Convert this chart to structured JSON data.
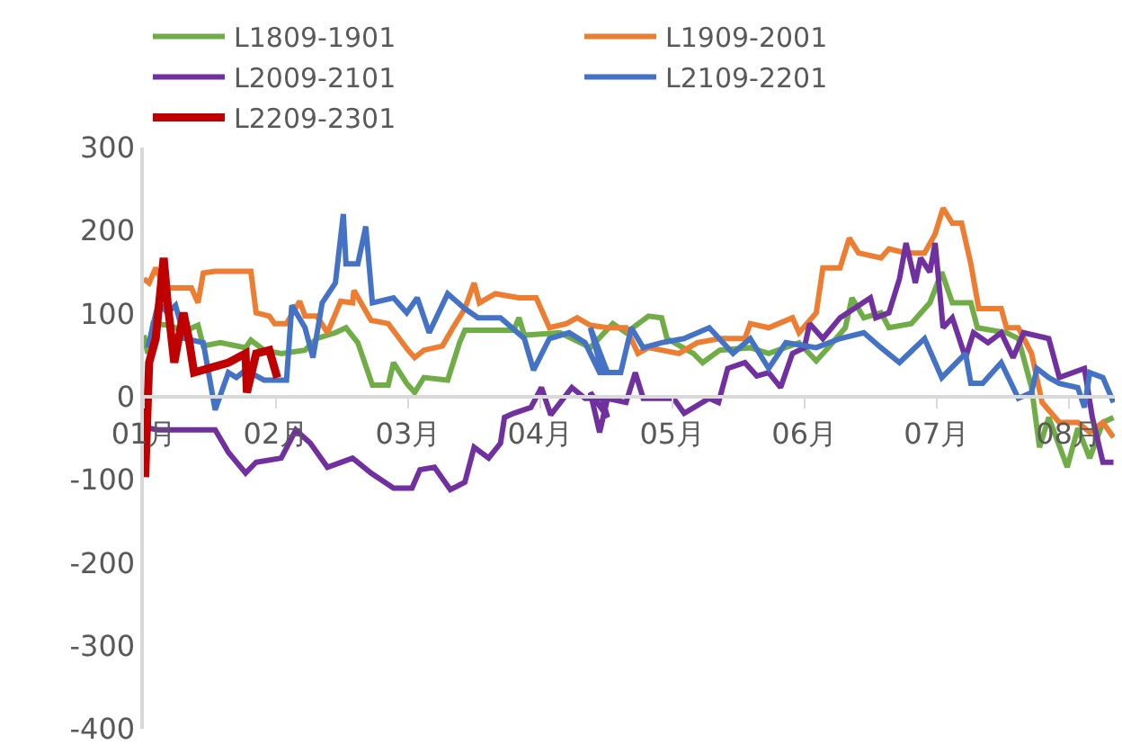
{
  "chart_data": {
    "type": "line",
    "legend": "top",
    "grid": false,
    "marker": "none",
    "line_style": "solid",
    "xlim": [
      1,
      8.35
    ],
    "xticks": [
      {
        "value": 1,
        "label": "01月"
      },
      {
        "value": 2,
        "label": "02月"
      },
      {
        "value": 3,
        "label": "03月"
      },
      {
        "value": 4,
        "label": "04月"
      },
      {
        "value": 5,
        "label": "05月"
      },
      {
        "value": 6,
        "label": "06月"
      },
      {
        "value": 7,
        "label": "07月"
      },
      {
        "value": 8,
        "label": "08月"
      }
    ],
    "ylim": [
      -400,
      300
    ],
    "yticks": [
      -400,
      -300,
      -200,
      -100,
      0,
      100,
      200,
      300
    ],
    "series": [
      {
        "name": "L1809-1901",
        "color": "#70ad47",
        "x": [
          1.0,
          1.03,
          1.07,
          1.18,
          1.31,
          1.41,
          1.45,
          1.58,
          1.77,
          1.81,
          1.91,
          2.04,
          2.22,
          2.31,
          2.45,
          2.53,
          2.62,
          2.73,
          2.85,
          2.89,
          2.99,
          3.05,
          3.12,
          3.3,
          3.39,
          3.43,
          3.8,
          3.84,
          3.88,
          4.15,
          4.38,
          4.55,
          4.65,
          4.82,
          4.92,
          4.96,
          5.16,
          5.23,
          5.36,
          5.59,
          5.73,
          5.96,
          6.09,
          6.18,
          6.31,
          6.36,
          6.45,
          6.58,
          6.64,
          6.81,
          6.95,
          7.04,
          7.12,
          7.26,
          7.31,
          7.53,
          7.62,
          7.72,
          7.78,
          7.85,
          7.99,
          8.07,
          8.16,
          8.26,
          8.34
        ],
        "values": [
          74,
          52,
          88,
          86,
          79,
          86,
          61,
          65,
          59,
          68,
          56,
          52,
          56,
          70,
          77,
          83,
          65,
          14,
          14,
          41,
          16,
          5,
          23,
          20,
          65,
          80,
          80,
          95,
          74,
          77,
          59,
          88,
          77,
          97,
          95,
          70,
          52,
          41,
          56,
          59,
          52,
          65,
          43,
          59,
          83,
          119,
          95,
          101,
          83,
          88,
          113,
          150,
          113,
          113,
          83,
          77,
          70,
          11,
          -61,
          -25,
          -85,
          -38,
          -74,
          -31,
          -25
        ]
      },
      {
        "name": "L1909-2001",
        "color": "#ed7d31",
        "x": [
          1.0,
          1.04,
          1.09,
          1.16,
          1.36,
          1.41,
          1.45,
          1.54,
          1.81,
          1.85,
          1.95,
          1.99,
          2.08,
          2.18,
          2.22,
          2.31,
          2.39,
          2.49,
          2.58,
          2.59,
          2.72,
          2.85,
          3.0,
          3.05,
          3.12,
          3.26,
          3.34,
          3.43,
          3.5,
          3.54,
          3.66,
          3.84,
          3.97,
          4.07,
          4.2,
          4.28,
          4.38,
          4.51,
          4.65,
          4.74,
          4.82,
          5.05,
          5.19,
          5.36,
          5.55,
          5.59,
          5.73,
          5.91,
          5.96,
          6.09,
          6.14,
          6.27,
          6.34,
          6.41,
          6.58,
          6.64,
          6.77,
          6.91,
          6.99,
          7.05,
          7.12,
          7.19,
          7.26,
          7.32,
          7.49,
          7.53,
          7.62,
          7.72,
          7.8,
          7.93,
          8.07,
          8.16,
          8.26,
          8.34
        ],
        "values": [
          142,
          137,
          155,
          131,
          131,
          113,
          149,
          151,
          151,
          101,
          97,
          88,
          88,
          115,
          97,
          97,
          77,
          115,
          113,
          128,
          92,
          88,
          56,
          47,
          56,
          61,
          83,
          106,
          137,
          113,
          124,
          119,
          119,
          83,
          88,
          95,
          86,
          83,
          83,
          52,
          59,
          52,
          65,
          70,
          70,
          88,
          83,
          95,
          77,
          101,
          155,
          155,
          191,
          173,
          167,
          178,
          173,
          173,
          196,
          227,
          209,
          209,
          160,
          106,
          106,
          83,
          83,
          52,
          -7,
          -31,
          -31,
          -43,
          -31,
          -49
        ]
      },
      {
        "name": "L2009-2101",
        "color": "#7030a0",
        "x": [
          1.0,
          1.04,
          1.11,
          1.54,
          1.64,
          1.77,
          1.85,
          2.04,
          2.15,
          2.26,
          2.39,
          2.58,
          2.72,
          2.89,
          3.03,
          3.09,
          3.2,
          3.32,
          3.43,
          3.5,
          3.61,
          3.7,
          3.73,
          3.8,
          3.93,
          4.01,
          4.08,
          4.24,
          4.34,
          4.47,
          4.51,
          4.38,
          4.45,
          4.51,
          4.65,
          4.72,
          4.78,
          5.01,
          5.09,
          5.28,
          5.35,
          5.42,
          5.55,
          5.64,
          5.73,
          5.82,
          5.91,
          6.0,
          6.04,
          6.14,
          6.27,
          6.5,
          6.54,
          6.64,
          6.72,
          6.77,
          6.84,
          6.88,
          6.95,
          6.99,
          7.05,
          7.12,
          7.22,
          7.28,
          7.39,
          7.49,
          7.58,
          7.66,
          7.85,
          7.93,
          8.12,
          8.18,
          8.26,
          8.34
        ],
        "values": [
          -31,
          -38,
          -40,
          -40,
          -67,
          -92,
          -79,
          -74,
          -40,
          -56,
          -85,
          -74,
          -92,
          -110,
          -110,
          -88,
          -85,
          -112,
          -103,
          -61,
          -74,
          -56,
          -25,
          -20,
          -13,
          11,
          -22,
          11,
          -2,
          -2,
          -25,
          5,
          -43,
          -2,
          -7,
          29,
          -2,
          -2,
          -20,
          -2,
          -7,
          34,
          41,
          25,
          29,
          11,
          52,
          59,
          88,
          70,
          95,
          119,
          95,
          101,
          142,
          185,
          137,
          167,
          150,
          185,
          83,
          95,
          47,
          77,
          65,
          77,
          47,
          77,
          70,
          23,
          34,
          -25,
          -79,
          -79
        ]
      },
      {
        "name": "L2109-2201",
        "color": "#4472c4",
        "x": [
          1.03,
          1.11,
          1.18,
          1.24,
          1.31,
          1.45,
          1.54,
          1.64,
          1.7,
          1.77,
          1.91,
          2.08,
          2.12,
          2.22,
          2.28,
          2.35,
          2.45,
          2.51,
          2.53,
          2.62,
          2.68,
          2.73,
          2.89,
          2.99,
          3.07,
          3.16,
          3.3,
          3.43,
          3.53,
          3.7,
          3.88,
          3.95,
          4.07,
          4.22,
          4.34,
          4.45,
          4.51,
          4.38,
          4.47,
          4.61,
          4.69,
          4.78,
          4.92,
          5.09,
          5.28,
          5.46,
          5.59,
          5.73,
          5.86,
          6.09,
          6.27,
          6.45,
          6.58,
          6.72,
          6.91,
          7.04,
          7.22,
          7.26,
          7.35,
          7.49,
          7.62,
          7.72,
          7.76,
          7.85,
          7.93,
          8.07,
          8.12,
          8.16,
          8.26,
          8.34
        ],
        "values": [
          59,
          113,
          101,
          110,
          70,
          65,
          -16,
          29,
          23,
          32,
          20,
          20,
          110,
          83,
          47,
          113,
          137,
          220,
          160,
          160,
          205,
          113,
          119,
          101,
          119,
          77,
          124,
          106,
          95,
          95,
          70,
          32,
          70,
          77,
          65,
          29,
          29,
          83,
          29,
          29,
          83,
          59,
          65,
          70,
          83,
          52,
          70,
          34,
          65,
          59,
          70,
          77,
          59,
          41,
          70,
          23,
          52,
          16,
          16,
          41,
          -2,
          5,
          34,
          23,
          16,
          11,
          -13,
          29,
          23,
          -7
        ]
      },
      {
        "name": "L2209-2301",
        "color": "#c00000",
        "x": [
          1.01,
          1.04,
          1.09,
          1.15,
          1.18,
          1.23,
          1.3,
          1.34,
          1.38,
          1.64,
          1.77,
          1.78,
          1.85,
          1.95,
          2.01
        ],
        "values": [
          -97,
          41,
          70,
          167,
          113,
          41,
          101,
          70,
          29,
          41,
          52,
          5,
          52,
          56,
          23
        ]
      }
    ]
  }
}
